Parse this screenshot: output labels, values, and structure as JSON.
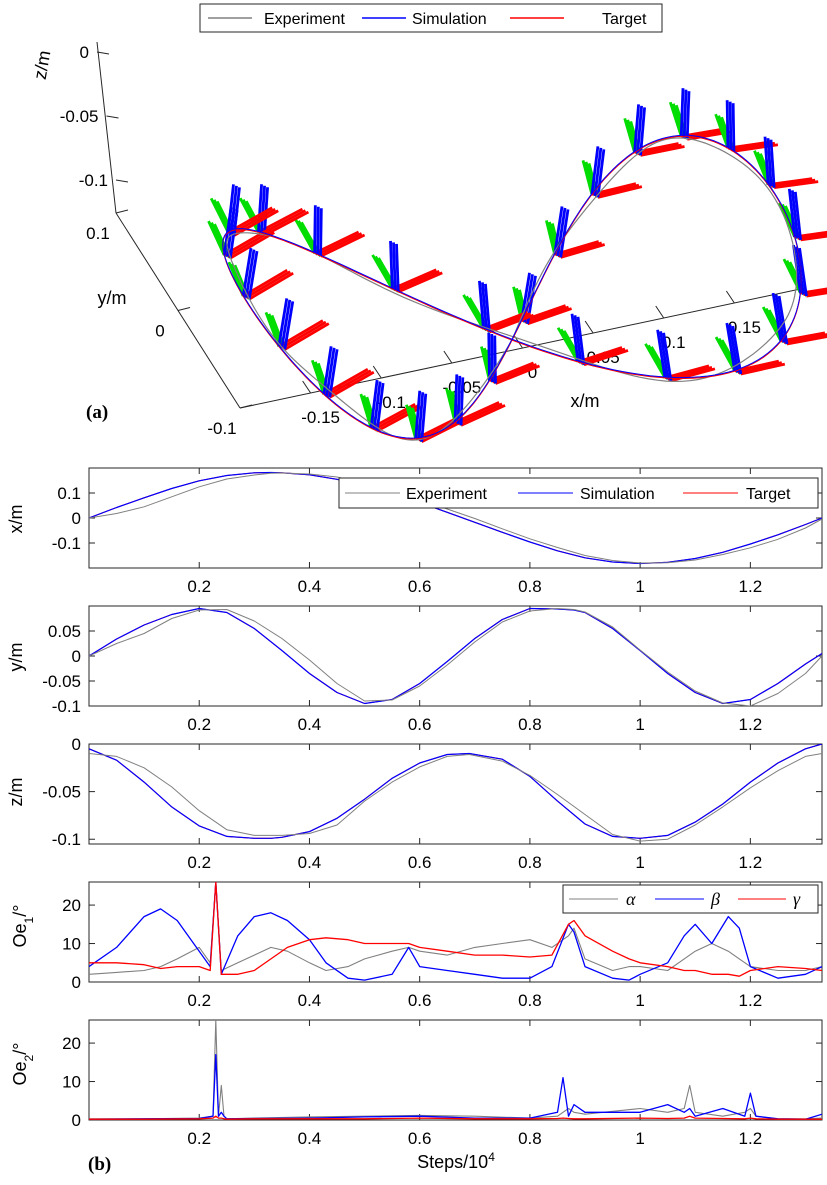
{
  "figure": {
    "label_a": "(a)",
    "label_b": "(b)"
  },
  "colors": {
    "experiment": "#808080",
    "simulation": "#0000ff",
    "target": "#ff0000",
    "frame_x": "#ff0000",
    "frame_y": "#00dd00",
    "frame_z": "#0000ff"
  },
  "chart_data": [
    {
      "id": "3d",
      "type": "line",
      "title": "",
      "legend": [
        "Experiment",
        "Simulation",
        "Target"
      ],
      "legend_position": "top",
      "xlabel": "x/m",
      "ylabel": "y/m",
      "zlabel": "z/m",
      "xlim": [
        -0.2,
        0.2
      ],
      "ylim": [
        -0.1,
        0.1
      ],
      "zlim": [
        -0.1,
        0
      ],
      "x_ticks": [
        -0.15,
        -0.1,
        -0.05,
        0,
        0.05,
        0.1,
        0.15
      ],
      "x_tick_labels": [
        "-0.15",
        "-0.1",
        "-0.05",
        "0",
        "0.05",
        "0.1",
        "0.15"
      ],
      "y_ticks": [
        -0.1,
        0,
        0.1
      ],
      "y_tick_labels": [
        "-0.1",
        "0",
        "0.1"
      ],
      "z_ticks": [
        -0.1,
        -0.05,
        0
      ],
      "z_tick_labels": [
        "-0.1",
        "-0.05",
        "0"
      ],
      "path": "figure-eight trajectory: x=0.18 sin(2πt/1.32), y=0.095 sin(4πt/1.32), z=-0.05-0.045 cos(4πt/1.32)",
      "frames_shown": 26
    },
    {
      "id": "x",
      "type": "line",
      "ylabel": "x/m",
      "xlim": [
        0,
        1.33
      ],
      "ylim": [
        -0.2,
        0.2
      ],
      "y_ticks": [
        -0.1,
        0,
        0.1
      ],
      "y_tick_labels": [
        "-0.1",
        "0",
        "0.1"
      ],
      "x_ticks": [
        0.2,
        0.4,
        0.6,
        0.8,
        1,
        1.2
      ],
      "x_tick_labels": [
        "0.2",
        "0.4",
        "0.6",
        "0.8",
        "1",
        "1.2"
      ],
      "legend": [
        "Experiment",
        "Simulation",
        "Target"
      ],
      "legend_position": "top-right",
      "x": [
        0,
        0.05,
        0.1,
        0.15,
        0.2,
        0.25,
        0.3,
        0.33,
        0.35,
        0.4,
        0.45,
        0.5,
        0.55,
        0.6,
        0.65,
        0.7,
        0.75,
        0.8,
        0.85,
        0.9,
        0.95,
        1.0,
        1.05,
        1.1,
        1.15,
        1.2,
        1.25,
        1.3,
        1.33
      ],
      "series": [
        {
          "name": "Target",
          "values": [
            0.0,
            0.042,
            0.081,
            0.118,
            0.149,
            0.17,
            0.181,
            0.182,
            0.181,
            0.173,
            0.155,
            0.128,
            0.097,
            0.062,
            0.023,
            -0.017,
            -0.057,
            -0.096,
            -0.131,
            -0.159,
            -0.176,
            -0.182,
            -0.177,
            -0.162,
            -0.137,
            -0.104,
            -0.067,
            -0.026,
            0.0
          ]
        },
        {
          "name": "Simulation",
          "values": [
            0.0,
            0.042,
            0.081,
            0.118,
            0.149,
            0.17,
            0.181,
            0.182,
            0.181,
            0.173,
            0.155,
            0.128,
            0.097,
            0.062,
            0.023,
            -0.017,
            -0.057,
            -0.096,
            -0.131,
            -0.159,
            -0.176,
            -0.182,
            -0.177,
            -0.162,
            -0.137,
            -0.104,
            -0.067,
            -0.026,
            0.0
          ]
        },
        {
          "name": "Experiment",
          "values": [
            0.0,
            0.018,
            0.045,
            0.085,
            0.125,
            0.156,
            0.172,
            0.179,
            0.18,
            0.176,
            0.164,
            0.14,
            0.108,
            0.072,
            0.036,
            -0.002,
            -0.043,
            -0.083,
            -0.118,
            -0.15,
            -0.17,
            -0.18,
            -0.179,
            -0.168,
            -0.146,
            -0.119,
            -0.085,
            -0.04,
            -0.004
          ]
        }
      ]
    },
    {
      "id": "y",
      "type": "line",
      "ylabel": "y/m",
      "xlim": [
        0,
        1.33
      ],
      "ylim": [
        -0.1,
        0.1
      ],
      "y_ticks": [
        -0.1,
        -0.05,
        0,
        0.05
      ],
      "y_tick_labels": [
        "-0.1",
        "-0.05",
        "0",
        "0.05"
      ],
      "x_ticks": [
        0.2,
        0.4,
        0.6,
        0.8,
        1,
        1.2
      ],
      "x_tick_labels": [
        "0.2",
        "0.4",
        "0.6",
        "0.8",
        "1",
        "1.2"
      ],
      "x": [
        0,
        0.05,
        0.1,
        0.15,
        0.2,
        0.25,
        0.3,
        0.35,
        0.4,
        0.45,
        0.5,
        0.55,
        0.6,
        0.65,
        0.7,
        0.75,
        0.8,
        0.85,
        0.88,
        0.9,
        0.95,
        1.0,
        1.05,
        1.1,
        1.15,
        1.2,
        1.25,
        1.3,
        1.33
      ],
      "series": [
        {
          "name": "Target",
          "values": [
            0.0,
            0.034,
            0.062,
            0.083,
            0.095,
            0.087,
            0.055,
            0.011,
            -0.035,
            -0.073,
            -0.095,
            -0.087,
            -0.055,
            -0.011,
            0.035,
            0.073,
            0.095,
            0.094,
            0.092,
            0.087,
            0.055,
            0.011,
            -0.035,
            -0.073,
            -0.095,
            -0.087,
            -0.055,
            -0.016,
            0.005
          ]
        },
        {
          "name": "Simulation",
          "values": [
            0.0,
            0.034,
            0.062,
            0.083,
            0.095,
            0.087,
            0.055,
            0.011,
            -0.035,
            -0.073,
            -0.095,
            -0.087,
            -0.055,
            -0.011,
            0.035,
            0.073,
            0.095,
            0.094,
            0.092,
            0.087,
            0.055,
            0.011,
            -0.035,
            -0.073,
            -0.095,
            -0.087,
            -0.055,
            -0.016,
            0.005
          ]
        },
        {
          "name": "Experiment",
          "values": [
            0.0,
            0.025,
            0.045,
            0.075,
            0.092,
            0.093,
            0.07,
            0.035,
            -0.008,
            -0.055,
            -0.09,
            -0.088,
            -0.06,
            -0.018,
            0.028,
            0.068,
            0.09,
            0.095,
            0.093,
            0.088,
            0.058,
            0.012,
            -0.032,
            -0.07,
            -0.094,
            -0.1,
            -0.075,
            -0.035,
            0.0
          ]
        }
      ]
    },
    {
      "id": "z",
      "type": "line",
      "ylabel": "z/m",
      "xlim": [
        0,
        1.33
      ],
      "ylim": [
        -0.105,
        0
      ],
      "y_ticks": [
        -0.1,
        -0.05,
        0
      ],
      "y_tick_labels": [
        "-0.1",
        "-0.05",
        "0"
      ],
      "x_ticks": [
        0.2,
        0.4,
        0.6,
        0.8,
        1,
        1.2
      ],
      "x_tick_labels": [
        "0.2",
        "0.4",
        "0.6",
        "0.8",
        "1",
        "1.2"
      ],
      "x": [
        0,
        0.05,
        0.1,
        0.15,
        0.2,
        0.25,
        0.3,
        0.33,
        0.35,
        0.4,
        0.45,
        0.5,
        0.55,
        0.6,
        0.65,
        0.69,
        0.75,
        0.8,
        0.85,
        0.9,
        0.95,
        1.0,
        1.05,
        1.1,
        1.15,
        1.2,
        1.25,
        1.3,
        1.33
      ],
      "series": [
        {
          "name": "Target",
          "values": [
            -0.005,
            -0.017,
            -0.04,
            -0.066,
            -0.086,
            -0.097,
            -0.099,
            -0.099,
            -0.098,
            -0.092,
            -0.078,
            -0.058,
            -0.036,
            -0.02,
            -0.011,
            -0.01,
            -0.016,
            -0.034,
            -0.06,
            -0.084,
            -0.097,
            -0.099,
            -0.096,
            -0.082,
            -0.063,
            -0.04,
            -0.02,
            -0.005,
            0.0
          ]
        },
        {
          "name": "Simulation",
          "values": [
            -0.005,
            -0.017,
            -0.04,
            -0.066,
            -0.086,
            -0.097,
            -0.099,
            -0.099,
            -0.098,
            -0.092,
            -0.078,
            -0.058,
            -0.036,
            -0.02,
            -0.011,
            -0.01,
            -0.016,
            -0.034,
            -0.06,
            -0.084,
            -0.097,
            -0.099,
            -0.096,
            -0.082,
            -0.063,
            -0.04,
            -0.02,
            -0.005,
            0.0
          ]
        },
        {
          "name": "Experiment",
          "values": [
            -0.01,
            -0.013,
            -0.025,
            -0.045,
            -0.07,
            -0.09,
            -0.096,
            -0.096,
            -0.096,
            -0.094,
            -0.085,
            -0.06,
            -0.04,
            -0.024,
            -0.013,
            -0.011,
            -0.018,
            -0.033,
            -0.053,
            -0.074,
            -0.095,
            -0.102,
            -0.1,
            -0.085,
            -0.066,
            -0.046,
            -0.028,
            -0.013,
            -0.01
          ]
        }
      ]
    },
    {
      "id": "oe1",
      "type": "line",
      "ylabel": "Oe",
      "ylabel_sub": "1",
      "ylabel_unit": "/°",
      "xlim": [
        0,
        1.33
      ],
      "ylim": [
        0,
        26
      ],
      "y_ticks": [
        0,
        10,
        20
      ],
      "y_tick_labels": [
        "0",
        "10",
        "20"
      ],
      "x_ticks": [
        0.2,
        0.4,
        0.6,
        0.8,
        1,
        1.2
      ],
      "x_tick_labels": [
        "0.2",
        "0.4",
        "0.6",
        "0.8",
        "1",
        "1.2"
      ],
      "legend": [
        "α",
        "β",
        "γ"
      ],
      "legend_position": "top-right",
      "x": [
        0,
        0.05,
        0.1,
        0.13,
        0.16,
        0.2,
        0.22,
        0.23,
        0.24,
        0.27,
        0.3,
        0.33,
        0.36,
        0.4,
        0.43,
        0.47,
        0.5,
        0.55,
        0.58,
        0.6,
        0.65,
        0.7,
        0.75,
        0.8,
        0.84,
        0.87,
        0.88,
        0.9,
        0.95,
        0.98,
        1.0,
        1.05,
        1.08,
        1.1,
        1.13,
        1.16,
        1.18,
        1.2,
        1.25,
        1.3,
        1.33
      ],
      "series": [
        {
          "name": "α",
          "values": [
            2,
            2.5,
            3,
            4,
            6,
            9,
            5,
            26,
            3,
            5,
            7,
            9,
            8,
            5,
            3,
            4,
            6,
            8,
            9,
            8,
            7,
            9,
            10,
            11,
            9,
            12,
            14,
            6,
            3,
            4,
            4,
            3,
            6,
            8,
            10,
            8,
            6,
            4,
            3,
            3,
            4
          ]
        },
        {
          "name": "β",
          "values": [
            4,
            9,
            17,
            19,
            16,
            8,
            4,
            26,
            2,
            12,
            17,
            18,
            16,
            11,
            5,
            1,
            0.5,
            2,
            9,
            4,
            3,
            2,
            1,
            1,
            4,
            15,
            13,
            4,
            1,
            0.5,
            2,
            5,
            12,
            15,
            10,
            17,
            14,
            4,
            1,
            2,
            4
          ]
        },
        {
          "name": "γ",
          "values": [
            5,
            5,
            4.5,
            3.5,
            4,
            4,
            3,
            26,
            2,
            2,
            3,
            6,
            9,
            11,
            11.5,
            11,
            10,
            10,
            10,
            9,
            8,
            7,
            7,
            6.5,
            7,
            15,
            16,
            12,
            8,
            6,
            5,
            4,
            3,
            3,
            2,
            2,
            1.5,
            3,
            4,
            3.5,
            3
          ]
        }
      ]
    },
    {
      "id": "oe2",
      "type": "line",
      "ylabel": "Oe",
      "ylabel_sub": "2",
      "ylabel_unit": "/°",
      "xlabel": "Steps/10",
      "xlabel_sup": "4",
      "xlim": [
        0,
        1.33
      ],
      "ylim": [
        0,
        26
      ],
      "y_ticks": [
        0,
        10,
        20
      ],
      "y_tick_labels": [
        "0",
        "10",
        "20"
      ],
      "x_ticks": [
        0.2,
        0.4,
        0.6,
        0.8,
        1,
        1.2
      ],
      "x_tick_labels": [
        "0.2",
        "0.4",
        "0.6",
        "0.8",
        "1",
        "1.2"
      ],
      "x": [
        0,
        0.1,
        0.2,
        0.225,
        0.23,
        0.235,
        0.24,
        0.245,
        0.25,
        0.3,
        0.4,
        0.5,
        0.6,
        0.7,
        0.8,
        0.85,
        0.86,
        0.87,
        0.88,
        0.9,
        1.0,
        1.05,
        1.08,
        1.09,
        1.1,
        1.15,
        1.19,
        1.2,
        1.21,
        1.25,
        1.3,
        1.33
      ],
      "series": [
        {
          "name": "α",
          "values": [
            0.3,
            0.3,
            0.5,
            1,
            26,
            1,
            9,
            1,
            0.3,
            0.5,
            0.8,
            1,
            1.2,
            1,
            0.5,
            1,
            2,
            3,
            2,
            1.5,
            3,
            2,
            3,
            9,
            2,
            1,
            2,
            3,
            1,
            0.3,
            0.3,
            0.5
          ]
        },
        {
          "name": "β",
          "values": [
            0.2,
            0.3,
            0.4,
            1,
            17,
            1,
            2,
            1,
            0.3,
            0.4,
            0.5,
            0.8,
            1,
            0.5,
            0.5,
            2,
            11,
            1,
            4,
            2,
            2,
            4,
            2,
            3,
            1,
            3,
            1,
            7,
            1,
            0.3,
            0.2,
            1.5
          ]
        },
        {
          "name": "γ",
          "values": [
            0.2,
            0.2,
            0.3,
            0.5,
            1,
            0.5,
            0.5,
            0.3,
            0.2,
            0.3,
            0.3,
            0.3,
            0.5,
            0.3,
            0.3,
            0.4,
            0.5,
            0.4,
            0.3,
            0.3,
            0.5,
            0.4,
            0.5,
            1,
            0.5,
            0.4,
            0.3,
            0.5,
            0.3,
            0.2,
            0.2,
            0.2
          ]
        }
      ]
    }
  ]
}
